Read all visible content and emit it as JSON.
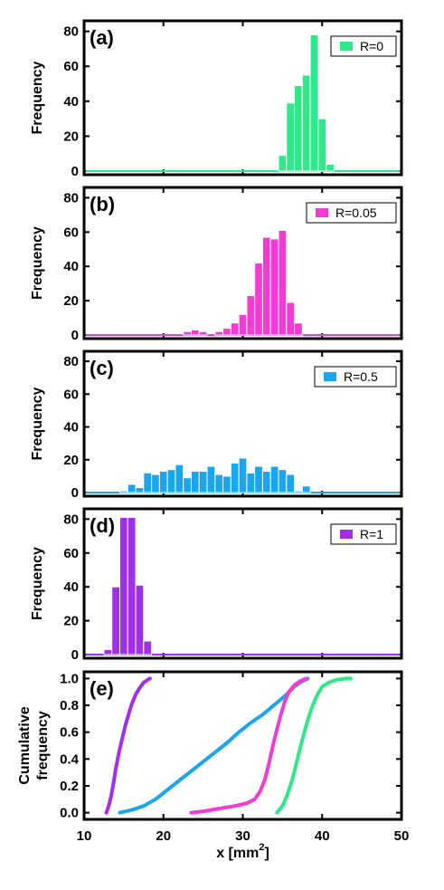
{
  "chart_data": [
    {
      "type": "bar",
      "panel_label": "(a)",
      "ylabel": "Frequency",
      "ylim": [
        0,
        85
      ],
      "xlim": [
        10,
        50
      ],
      "bin_width": 1,
      "yticks": [
        0,
        20,
        40,
        60,
        80
      ],
      "color": "#2ee88a",
      "legend": "top-right",
      "series": [
        {
          "name": "R=0",
          "bins": [
            {
              "x": 35,
              "y": 9
            },
            {
              "x": 36,
              "y": 39
            },
            {
              "x": 37,
              "y": 49
            },
            {
              "x": 38,
              "y": 55
            },
            {
              "x": 39,
              "y": 78
            },
            {
              "x": 40,
              "y": 30
            },
            {
              "x": 41,
              "y": 4
            }
          ]
        }
      ]
    },
    {
      "type": "bar",
      "panel_label": "(b)",
      "ylabel": "Frequency",
      "ylim": [
        0,
        85
      ],
      "xlim": [
        10,
        50
      ],
      "bin_width": 1,
      "yticks": [
        0,
        20,
        40,
        60,
        80
      ],
      "color": "#f23bd2",
      "legend": "top-right",
      "series": [
        {
          "name": "R=0.05",
          "bins": [
            {
              "x": 23,
              "y": 2
            },
            {
              "x": 24,
              "y": 3
            },
            {
              "x": 25,
              "y": 2
            },
            {
              "x": 27,
              "y": 2
            },
            {
              "x": 28,
              "y": 4
            },
            {
              "x": 29,
              "y": 7
            },
            {
              "x": 30,
              "y": 12
            },
            {
              "x": 31,
              "y": 23
            },
            {
              "x": 32,
              "y": 42
            },
            {
              "x": 33,
              "y": 57
            },
            {
              "x": 34,
              "y": 56
            },
            {
              "x": 35,
              "y": 61
            },
            {
              "x": 36,
              "y": 19
            },
            {
              "x": 37,
              "y": 7
            }
          ]
        }
      ]
    },
    {
      "type": "bar",
      "panel_label": "(c)",
      "ylabel": "Frequency",
      "ylim": [
        0,
        85
      ],
      "xlim": [
        10,
        50
      ],
      "bin_width": 1,
      "yticks": [
        0,
        20,
        40,
        60,
        80
      ],
      "color": "#1aa6ee",
      "legend": "top-right",
      "series": [
        {
          "name": "R=0.5",
          "bins": [
            {
              "x": 15,
              "y": 1
            },
            {
              "x": 16,
              "y": 5
            },
            {
              "x": 17,
              "y": 3
            },
            {
              "x": 18,
              "y": 12
            },
            {
              "x": 19,
              "y": 11
            },
            {
              "x": 20,
              "y": 13
            },
            {
              "x": 21,
              "y": 14
            },
            {
              "x": 22,
              "y": 17
            },
            {
              "x": 23,
              "y": 9
            },
            {
              "x": 24,
              "y": 13
            },
            {
              "x": 25,
              "y": 13
            },
            {
              "x": 26,
              "y": 16
            },
            {
              "x": 27,
              "y": 11
            },
            {
              "x": 28,
              "y": 10
            },
            {
              "x": 29,
              "y": 18
            },
            {
              "x": 30,
              "y": 21
            },
            {
              "x": 31,
              "y": 12
            },
            {
              "x": 32,
              "y": 16
            },
            {
              "x": 33,
              "y": 13
            },
            {
              "x": 34,
              "y": 16
            },
            {
              "x": 35,
              "y": 14
            },
            {
              "x": 36,
              "y": 11
            },
            {
              "x": 37,
              "y": 1
            },
            {
              "x": 38,
              "y": 4
            }
          ]
        }
      ]
    },
    {
      "type": "bar",
      "panel_label": "(d)",
      "ylabel": "Frequency",
      "ylim": [
        0,
        85
      ],
      "xlim": [
        10,
        50
      ],
      "bin_width": 1,
      "yticks": [
        0,
        20,
        40,
        60,
        80
      ],
      "color": "#a12ee8",
      "legend": "top-right",
      "series": [
        {
          "name": "R=1",
          "bins": [
            {
              "x": 13,
              "y": 3
            },
            {
              "x": 14,
              "y": 40
            },
            {
              "x": 15,
              "y": 81
            },
            {
              "x": 16,
              "y": 81
            },
            {
              "x": 17,
              "y": 41
            },
            {
              "x": 18,
              "y": 8
            }
          ]
        }
      ]
    },
    {
      "type": "line",
      "panel_label": "(e)",
      "ylabel": [
        "Cumulative",
        "frequency"
      ],
      "xlabel": "x [mm",
      "xlabel_superscript": "2",
      "xlabel_suffix": "]",
      "ylim": [
        -0.05,
        1.05
      ],
      "xlim": [
        10,
        50
      ],
      "xticks": [
        10,
        20,
        30,
        40,
        50
      ],
      "yticks": [
        0.0,
        0.2,
        0.4,
        0.6,
        0.8,
        1.0
      ],
      "ytick_labels": [
        "0.0",
        "0.2",
        "0.4",
        "0.6",
        "0.8",
        "1.0"
      ],
      "series": [
        {
          "color": "#a12ee8",
          "x": [
            12.8,
            13.1,
            13.4,
            13.7,
            14.0,
            14.4,
            14.8,
            15.2,
            15.6,
            16.0,
            16.5,
            17.0,
            17.5,
            18.0,
            18.3
          ],
          "y": [
            0.0,
            0.05,
            0.12,
            0.22,
            0.33,
            0.45,
            0.55,
            0.65,
            0.73,
            0.81,
            0.88,
            0.93,
            0.97,
            0.99,
            1.0
          ]
        },
        {
          "color": "#1aa6ee",
          "x": [
            14.5,
            16,
            17.5,
            19,
            20.5,
            22,
            23.5,
            25,
            26.5,
            28,
            29.5,
            31,
            32.5,
            33.5,
            34.5,
            35.5,
            36.5,
            37.5,
            38.2
          ],
          "y": [
            0.0,
            0.02,
            0.05,
            0.1,
            0.17,
            0.24,
            0.31,
            0.38,
            0.45,
            0.52,
            0.6,
            0.67,
            0.73,
            0.78,
            0.83,
            0.88,
            0.94,
            0.98,
            1.0
          ]
        },
        {
          "color": "#f23bd2",
          "x": [
            23.5,
            25,
            27,
            29,
            30.5,
            31.5,
            32.2,
            32.8,
            33.3,
            33.8,
            34.3,
            34.8,
            35.3,
            35.8,
            36.5,
            37.2,
            38.0
          ],
          "y": [
            0.0,
            0.01,
            0.03,
            0.05,
            0.07,
            0.1,
            0.16,
            0.25,
            0.37,
            0.5,
            0.62,
            0.73,
            0.83,
            0.9,
            0.95,
            0.98,
            1.0
          ]
        },
        {
          "color": "#2ee88a",
          "x": [
            34.3,
            35.0,
            35.6,
            36.2,
            36.8,
            37.3,
            37.8,
            38.3,
            38.8,
            39.4,
            40.0,
            40.8,
            41.8,
            43.0,
            43.6
          ],
          "y": [
            0.0,
            0.05,
            0.13,
            0.24,
            0.38,
            0.5,
            0.61,
            0.71,
            0.8,
            0.88,
            0.94,
            0.97,
            0.99,
            1.0,
            1.0
          ]
        }
      ]
    }
  ]
}
